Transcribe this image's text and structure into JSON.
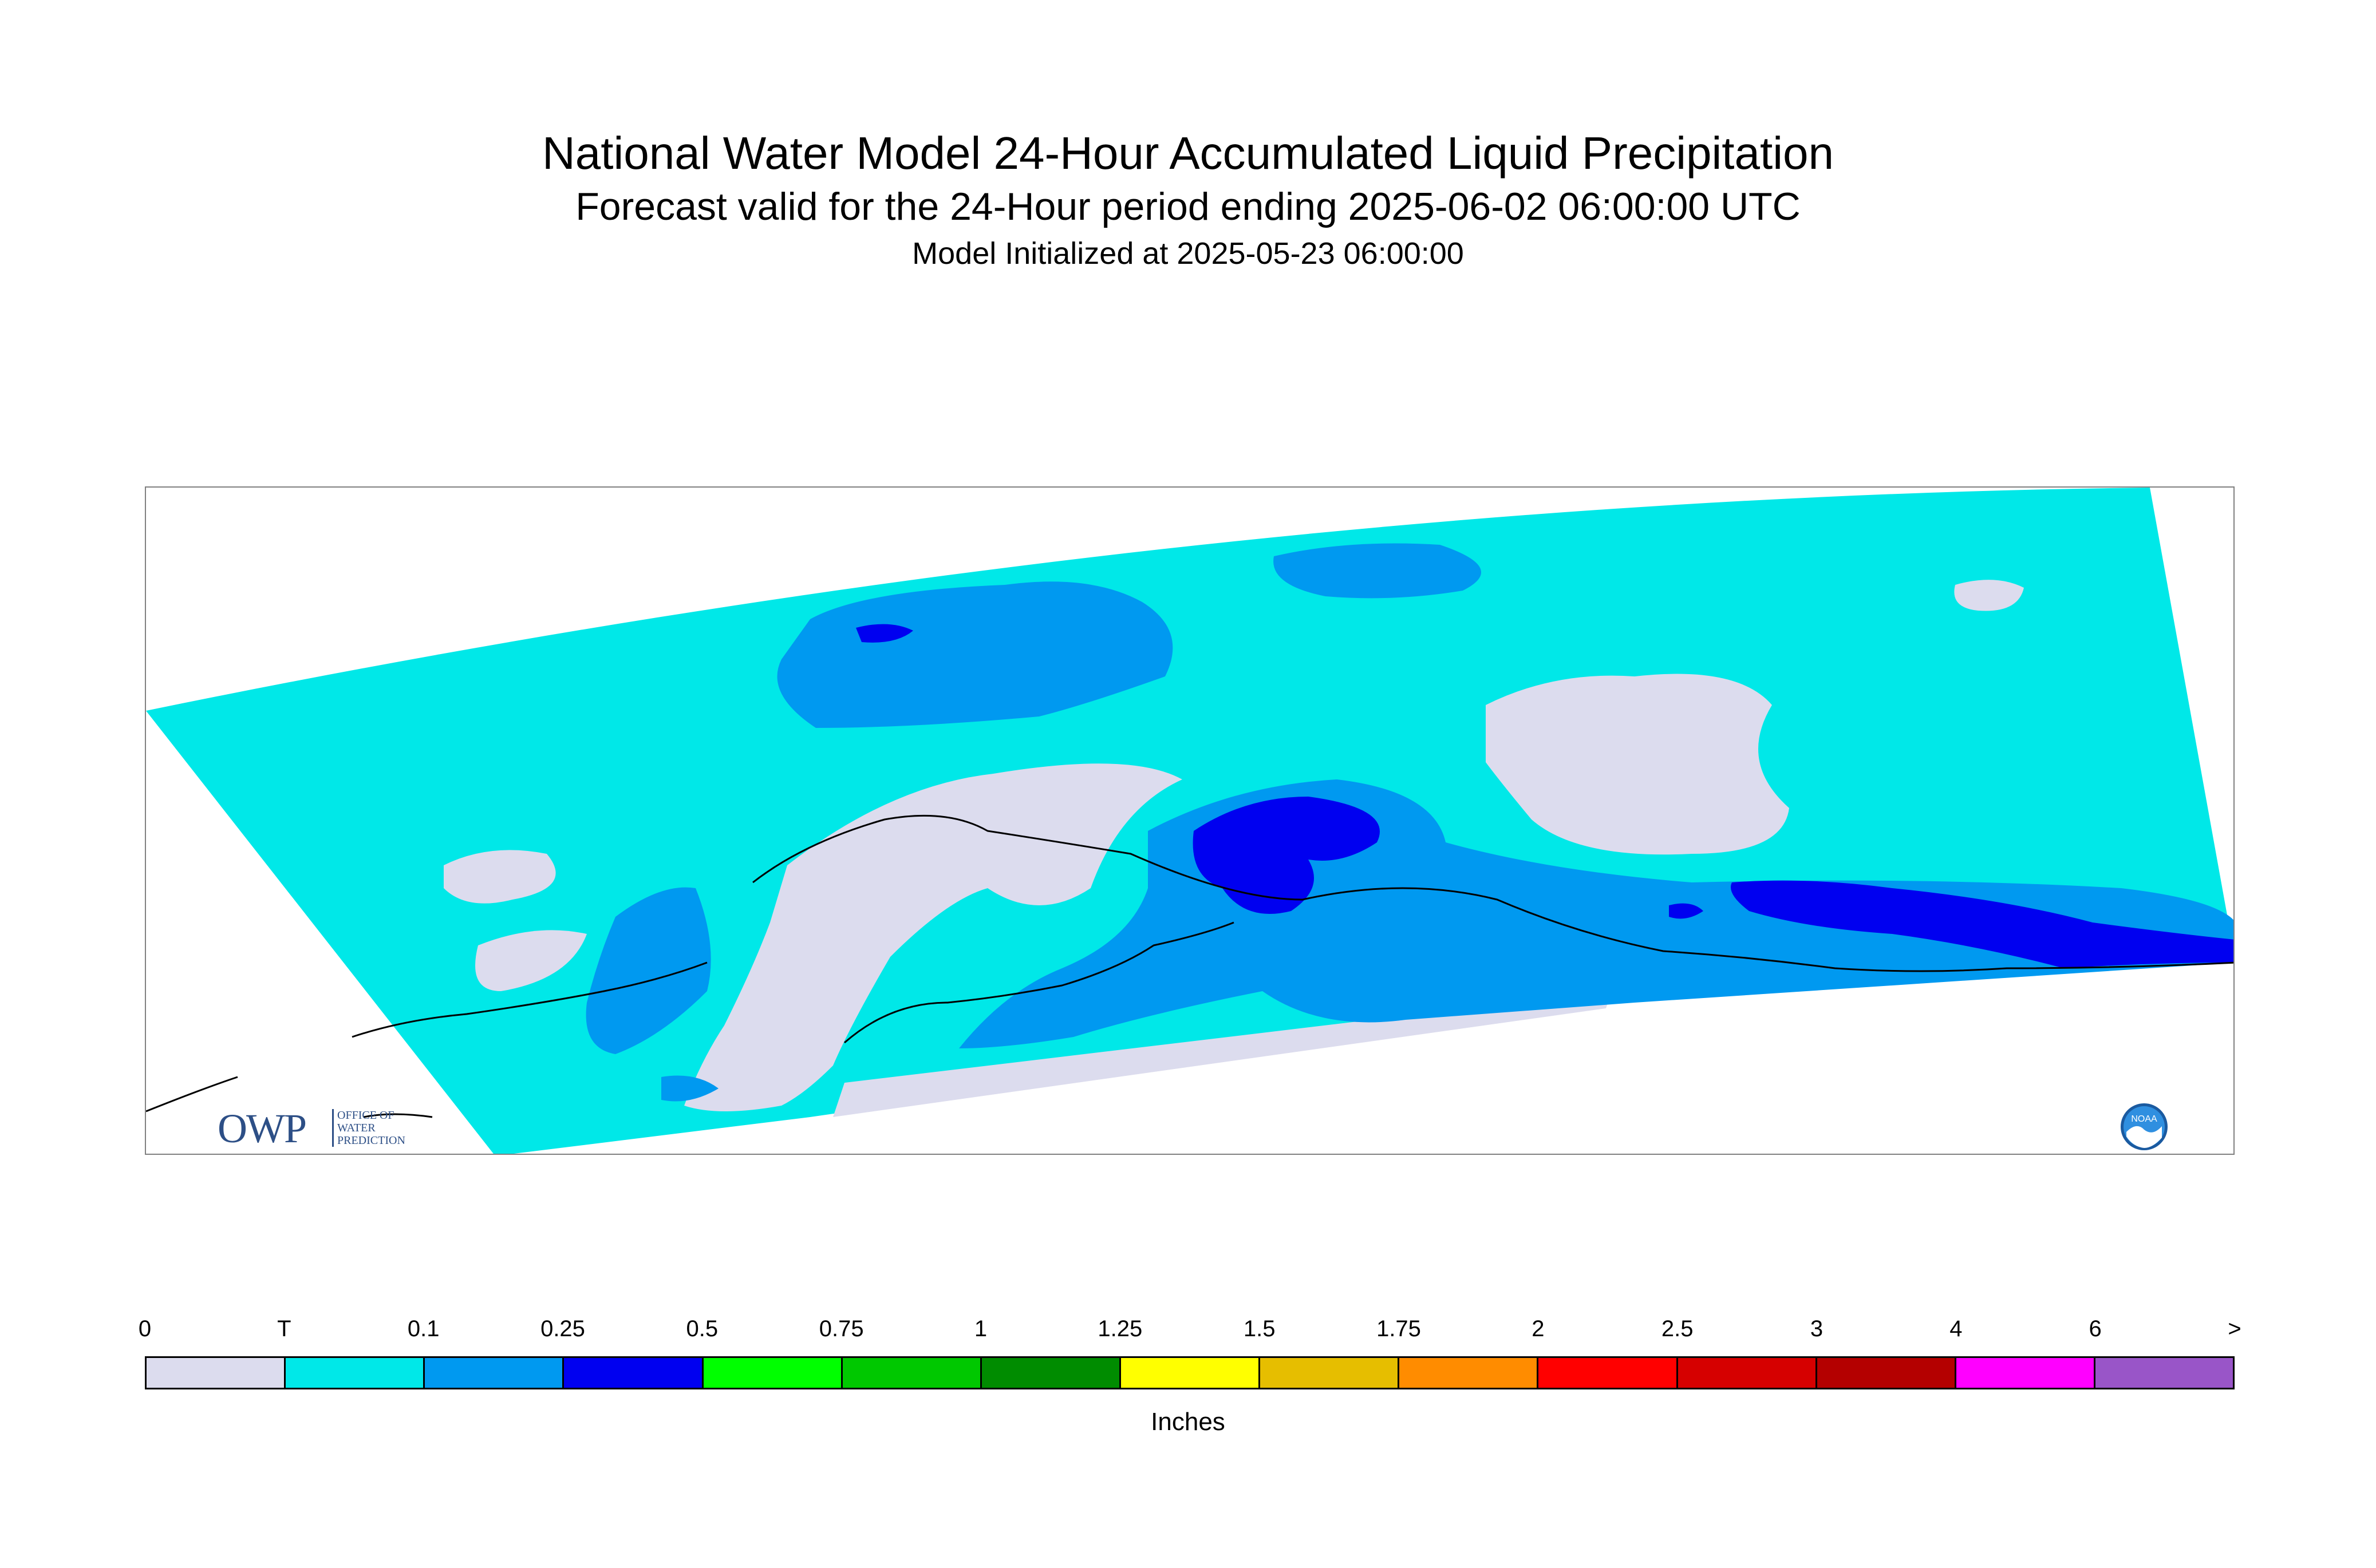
{
  "title": "National Water Model 24-Hour Accumulated Liquid Precipitation",
  "subtitle": "Forecast valid for the 24-Hour period ending 2025-06-02 06:00:00 UTC",
  "init": "Model Initialized at 2025-05-23 06:00:00",
  "logos": {
    "owp": {
      "letters": "OWP",
      "subtitle_lines": [
        "OFFICE OF",
        "WATER",
        "PREDICTION"
      ]
    },
    "noaa": {
      "letters": "NOAA"
    }
  },
  "legend": {
    "ticks": [
      "0",
      "T",
      "0.1",
      "0.25",
      "0.5",
      "0.75",
      "1",
      "1.25",
      "1.5",
      "1.75",
      "2",
      "2.5",
      "3",
      "4",
      "6",
      ">"
    ],
    "colors": [
      "#dcdcee",
      "#00e8e8",
      "#0099f0",
      "#0000f0",
      "#00ff00",
      "#00c800",
      "#008c00",
      "#ffff00",
      "#e6be00",
      "#ff8c00",
      "#ff0000",
      "#d60000",
      "#b40000",
      "#ff00ff",
      "#9955c8"
    ],
    "units": "Inches"
  }
}
